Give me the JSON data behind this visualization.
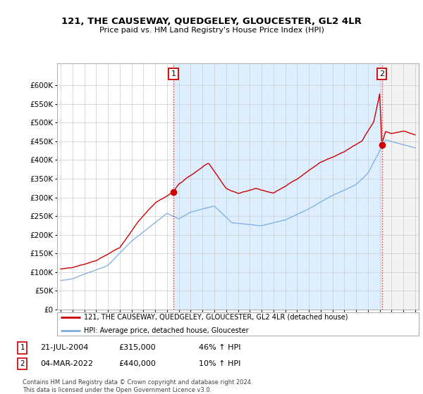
{
  "title": "121, THE CAUSEWAY, QUEDGELEY, GLOUCESTER, GL2 4LR",
  "subtitle": "Price paid vs. HM Land Registry's House Price Index (HPI)",
  "legend_line1": "121, THE CAUSEWAY, QUEDGELEY, GLOUCESTER, GL2 4LR (detached house)",
  "legend_line2": "HPI: Average price, detached house, Gloucester",
  "annotation1": {
    "num": "1",
    "date": "21-JUL-2004",
    "price": "£315,000",
    "change": "46% ↑ HPI"
  },
  "annotation2": {
    "num": "2",
    "date": "04-MAR-2022",
    "price": "£440,000",
    "change": "10% ↑ HPI"
  },
  "footer": "Contains HM Land Registry data © Crown copyright and database right 2024.\nThis data is licensed under the Open Government Licence v3.0.",
  "sale1_year": 2004.55,
  "sale1_price": 315000,
  "sale2_year": 2022.17,
  "sale2_price": 440000,
  "red_color": "#cc0000",
  "blue_color": "#7aade0",
  "shade_color": "#ddeeff",
  "hatch_color": "#cccccc",
  "background_color": "#ffffff",
  "grid_color": "#cccccc",
  "ylim_max": 660000,
  "xlim_start": 1994.7,
  "xlim_end": 2025.3
}
